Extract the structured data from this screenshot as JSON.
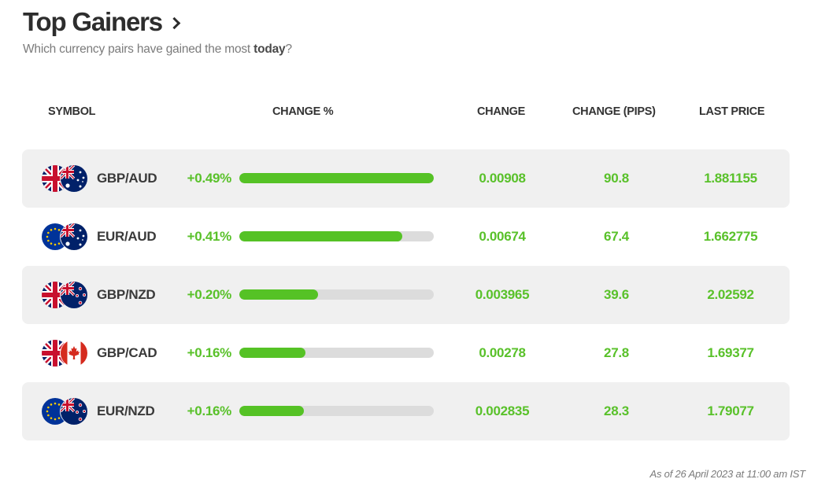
{
  "header": {
    "title": "Top Gainers",
    "subtitle_prefix": "Which currency pairs have gained the most ",
    "subtitle_bold": "today",
    "subtitle_suffix": "?"
  },
  "columns": {
    "symbol": "SYMBOL",
    "change_pct": "CHANGE %",
    "change": "CHANGE",
    "change_pips": "CHANGE (PIPS)",
    "last_price": "LAST PRICE"
  },
  "colors": {
    "gain_green": "#59c12a",
    "bar_track": "#dcdcdc",
    "row_shade": "#f0f0f0"
  },
  "rows": [
    {
      "symbol": "GBP/AUD",
      "flags": [
        "uk-flag-icon",
        "australia-flag-icon"
      ],
      "change_pct": "+0.49%",
      "bar_fraction": 1.0,
      "change": "0.00908",
      "change_pips": "90.8",
      "last_price": "1.881155"
    },
    {
      "symbol": "EUR/AUD",
      "flags": [
        "eu-flag-icon",
        "australia-flag-icon"
      ],
      "change_pct": "+0.41%",
      "bar_fraction": 0.84,
      "change": "0.00674",
      "change_pips": "67.4",
      "last_price": "1.662775"
    },
    {
      "symbol": "GBP/NZD",
      "flags": [
        "uk-flag-icon",
        "new-zealand-flag-icon"
      ],
      "change_pct": "+0.20%",
      "bar_fraction": 0.405,
      "change": "0.003965",
      "change_pips": "39.6",
      "last_price": "2.02592"
    },
    {
      "symbol": "GBP/CAD",
      "flags": [
        "uk-flag-icon",
        "canada-flag-icon"
      ],
      "change_pct": "+0.16%",
      "bar_fraction": 0.34,
      "change": "0.00278",
      "change_pips": "27.8",
      "last_price": "1.69377"
    },
    {
      "symbol": "EUR/NZD",
      "flags": [
        "eu-flag-icon",
        "new-zealand-flag-icon"
      ],
      "change_pct": "+0.16%",
      "bar_fraction": 0.33,
      "change": "0.002835",
      "change_pips": "28.3",
      "last_price": "1.79077"
    }
  ],
  "footer": {
    "timestamp": "As of 26 April 2023 at 11:00 am IST"
  }
}
